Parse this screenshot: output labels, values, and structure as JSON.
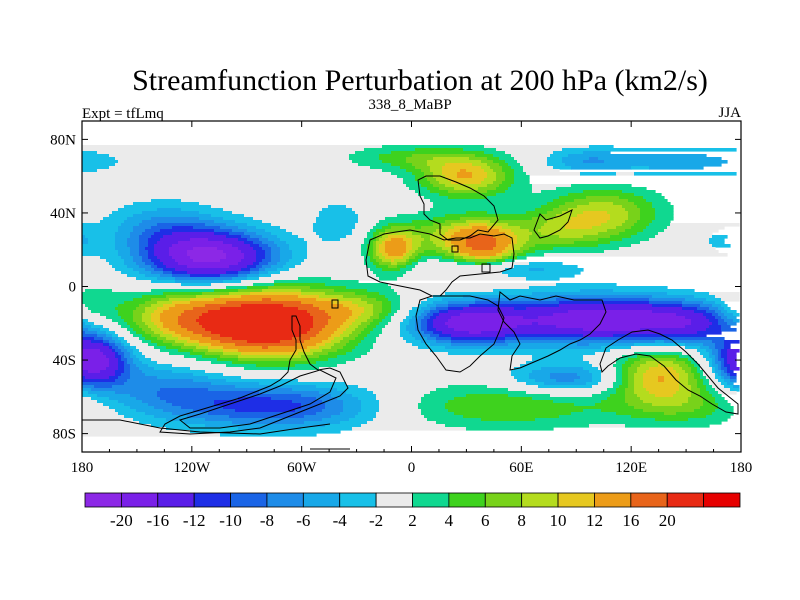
{
  "chart_data": {
    "type": "heatmap",
    "title": "Streamfunction Perturbation at 200 hPa (km2/s)",
    "left_label": "Expt = tfLmq",
    "center_label": "338_8_MaBP",
    "right_label": "JJA",
    "x_ticks": [
      "180",
      "120W",
      "60W",
      "0",
      "60E",
      "120E",
      "180"
    ],
    "x_tick_values": [
      -180,
      -120,
      -60,
      0,
      60,
      120,
      180
    ],
    "y_ticks": [
      "80N",
      "40N",
      "0",
      "40S",
      "80S"
    ],
    "y_tick_values": [
      80,
      40,
      0,
      -40,
      -80
    ],
    "xlim": [
      -180,
      180
    ],
    "ylim": [
      -90,
      90
    ],
    "levels": [
      -20,
      -16,
      -12,
      -10,
      -8,
      -6,
      -4,
      -2,
      2,
      4,
      6,
      8,
      10,
      12,
      16,
      20
    ],
    "level_labels": [
      "-20",
      "-16",
      "-12",
      "-10",
      "-8",
      "-6",
      "-4",
      "-2",
      "2",
      "4",
      "6",
      "8",
      "10",
      "12",
      "16",
      "20"
    ],
    "colors": [
      "#8c28e6",
      "#7a20e8",
      "#5a1ee8",
      "#1e2ee6",
      "#1a64e6",
      "#1e8ce8",
      "#18a8e8",
      "#18c0e8",
      "#ebebeb",
      "#10d890",
      "#3ed21e",
      "#78d21a",
      "#b4dc1e",
      "#e6c820",
      "#ec9c18",
      "#e8641a",
      "#e82a14",
      "#e60000"
    ],
    "anomalies": [
      {
        "lon": -75,
        "lat": -20,
        "amp": 22,
        "sx": 28,
        "sy": 13
      },
      {
        "lon": -100,
        "lat": -20,
        "amp": 9,
        "sx": 30,
        "sy": 10
      },
      {
        "lon": -130,
        "lat": -15,
        "amp": 7,
        "sx": 22,
        "sy": 10
      },
      {
        "lon": -175,
        "lat": -10,
        "amp": 4,
        "sx": 10,
        "sy": 8
      },
      {
        "lon": -25,
        "lat": -12,
        "amp": 6,
        "sx": 18,
        "sy": 7
      },
      {
        "lon": -110,
        "lat": 16,
        "amp": -21,
        "sx": 25,
        "sy": 10
      },
      {
        "lon": -135,
        "lat": 32,
        "amp": -6,
        "sx": 22,
        "sy": 10
      },
      {
        "lon": -40,
        "lat": 35,
        "amp": -4,
        "sx": 10,
        "sy": 8
      },
      {
        "lon": 100,
        "lat": -18,
        "amp": -19,
        "sx": 35,
        "sy": 9
      },
      {
        "lon": 30,
        "lat": -20,
        "amp": -17,
        "sx": 22,
        "sy": 8
      },
      {
        "lon": 150,
        "lat": -20,
        "amp": -10,
        "sx": 20,
        "sy": 8
      },
      {
        "lon": 50,
        "lat": 10,
        "amp": -6,
        "sx": 30,
        "sy": 4
      },
      {
        "lon": -175,
        "lat": -40,
        "amp": -19,
        "sx": 14,
        "sy": 10
      },
      {
        "lon": -75,
        "lat": -65,
        "amp": -11,
        "sx": 40,
        "sy": 9
      },
      {
        "lon": -135,
        "lat": -55,
        "amp": -6,
        "sx": 25,
        "sy": 10
      },
      {
        "lon": 85,
        "lat": -50,
        "amp": -8,
        "sx": 22,
        "sy": 6
      },
      {
        "lon": 135,
        "lat": -48,
        "amp": 12,
        "sx": 18,
        "sy": 10
      },
      {
        "lon": 50,
        "lat": -65,
        "amp": 6,
        "sx": 45,
        "sy": 9
      },
      {
        "lon": 150,
        "lat": -65,
        "amp": 5,
        "sx": 25,
        "sy": 8
      },
      {
        "lon": 30,
        "lat": 60,
        "amp": 12,
        "sx": 18,
        "sy": 8
      },
      {
        "lon": 0,
        "lat": 70,
        "amp": 5,
        "sx": 25,
        "sy": 5
      },
      {
        "lon": -10,
        "lat": 20,
        "amp": 13,
        "sx": 9,
        "sy": 8
      },
      {
        "lon": 40,
        "lat": 22,
        "amp": 14,
        "sx": 14,
        "sy": 9
      },
      {
        "lon": 20,
        "lat": 28,
        "amp": 7,
        "sx": 20,
        "sy": 8
      },
      {
        "lon": 105,
        "lat": 40,
        "amp": 9,
        "sx": 22,
        "sy": 10
      },
      {
        "lon": 80,
        "lat": 30,
        "amp": 6,
        "sx": 20,
        "sy": 8
      },
      {
        "lon": 145,
        "lat": 68,
        "amp": -5,
        "sx": 40,
        "sy": 6
      },
      {
        "lon": 95,
        "lat": 68,
        "amp": -4,
        "sx": 15,
        "sy": 5
      },
      {
        "lon": 175,
        "lat": 25,
        "amp": -4,
        "sx": 10,
        "sy": 6
      }
    ]
  }
}
